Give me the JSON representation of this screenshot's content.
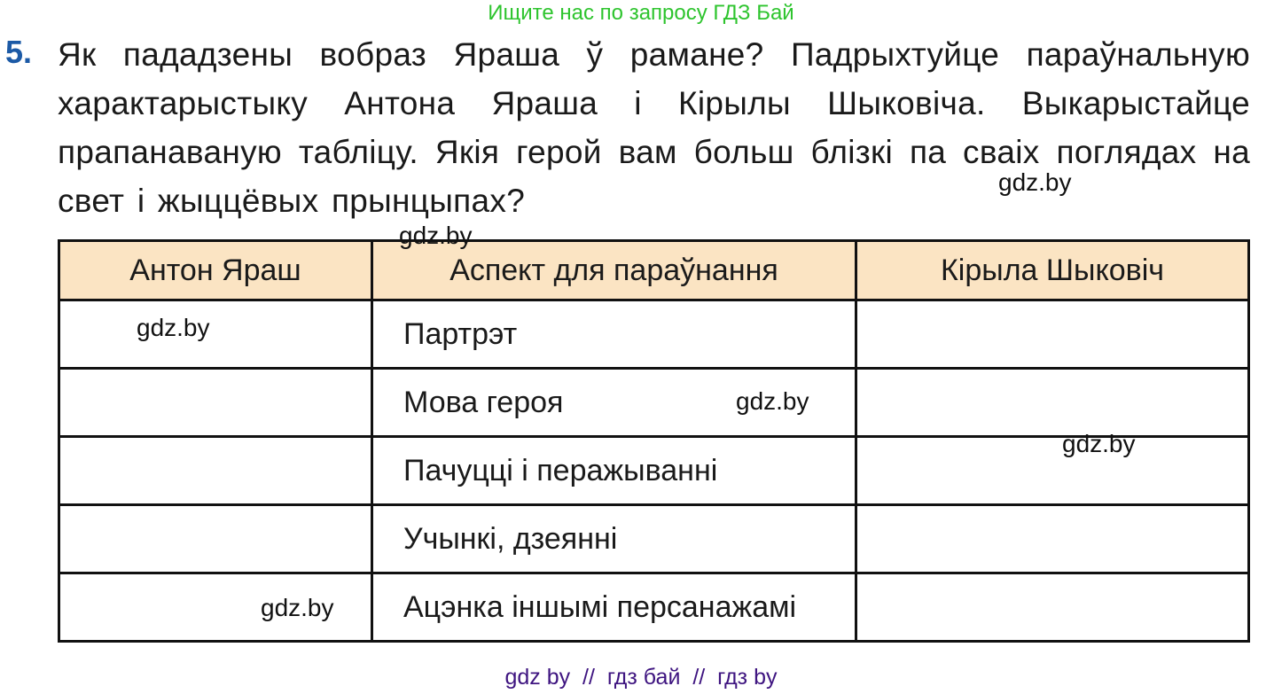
{
  "header_banner": "Ищите нас по запросу ГДЗ Бай",
  "task": {
    "number": "5.",
    "text": "Як пададзены вобраз Яраша ў рамане? Падрыхтуйце параўнальную характарыстыку Антона Яраша і Кірылы Шыковіча. Выкарыстайце прапанаваную табліцу. Якія герой вам больш блізкі па сваіх поглядах на свет і жыццёвых прынцыпах?"
  },
  "table": {
    "headers": [
      "Антон Яраш",
      "Аспект для параўнання",
      "Кірыла Шыковіч"
    ],
    "rows": [
      "Партрэт",
      "Мова героя",
      "Пачуцці і перажыванні",
      "Учынкі, дзеянні",
      "Ацэнка іншымі персанажамі"
    ]
  },
  "watermark": "gdz.by",
  "footer": "gdz by  //  гдз бай  //  гдз by",
  "colors": {
    "task_number": "#1c5aa6",
    "header_bg": "#fbe4c3",
    "banner": "#2ec42e",
    "footer": "#3e1480"
  }
}
